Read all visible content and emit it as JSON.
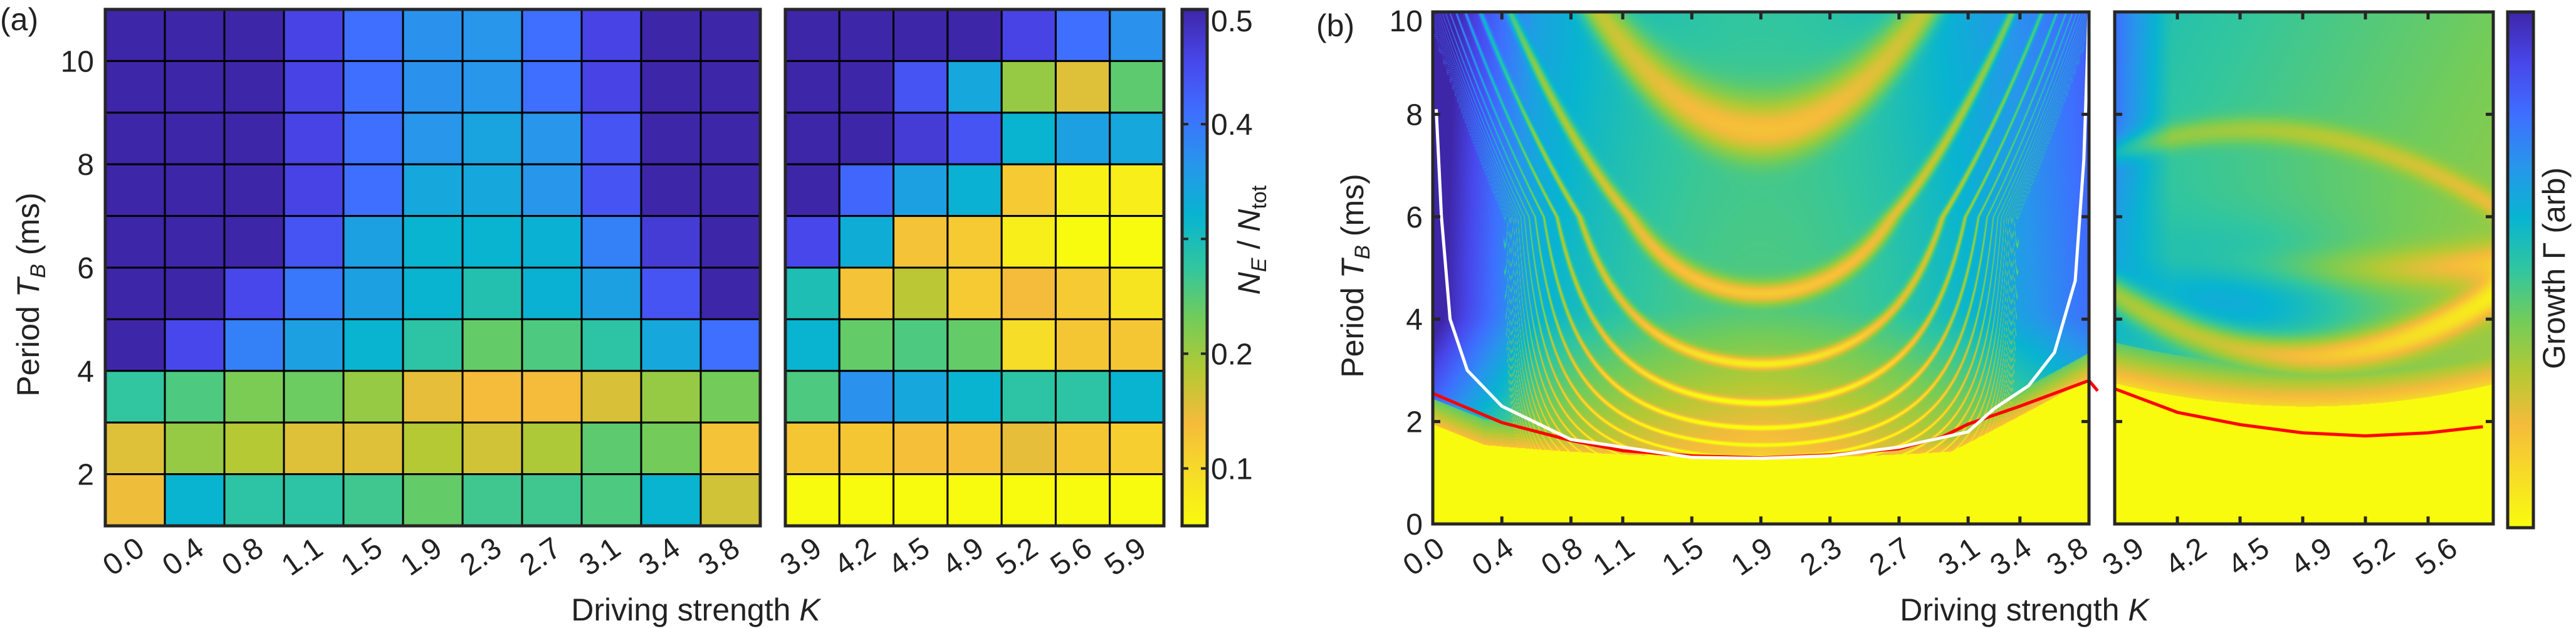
{
  "chart_data": [
    {
      "type": "heatmap",
      "panel_label": "(a)",
      "ylabel": {
        "pre": "Period ",
        "var": "T",
        "sub": "B",
        "post": " (ms)"
      },
      "xlabel": {
        "pre": "Driving strength ",
        "var": "K"
      },
      "y_range": [
        1,
        11
      ],
      "y_ticks": [
        "2",
        "4",
        "6",
        "8",
        "10"
      ],
      "x_categories_left": [
        "0.0",
        "0.4",
        "0.8",
        "1.1",
        "1.5",
        "1.9",
        "2.3",
        "2.7",
        "3.1",
        "3.4",
        "3.8"
      ],
      "x_categories_right": [
        "3.9",
        "4.2",
        "4.5",
        "4.9",
        "5.2",
        "5.6",
        "5.9"
      ],
      "row_order": "top-to-bottom",
      "values_left": [
        [
          0.5,
          0.5,
          0.5,
          0.46,
          0.41,
          0.37,
          0.365,
          0.41,
          0.46,
          0.5,
          0.5
        ],
        [
          0.5,
          0.5,
          0.5,
          0.46,
          0.41,
          0.37,
          0.365,
          0.41,
          0.46,
          0.5,
          0.5
        ],
        [
          0.5,
          0.5,
          0.5,
          0.46,
          0.41,
          0.365,
          0.345,
          0.365,
          0.44,
          0.5,
          0.5
        ],
        [
          0.5,
          0.5,
          0.5,
          0.46,
          0.41,
          0.34,
          0.34,
          0.365,
          0.44,
          0.5,
          0.5
        ],
        [
          0.5,
          0.5,
          0.5,
          0.44,
          0.35,
          0.32,
          0.32,
          0.325,
          0.39,
          0.47,
          0.5
        ],
        [
          0.5,
          0.5,
          0.455,
          0.4,
          0.35,
          0.32,
          0.29,
          0.325,
          0.35,
          0.44,
          0.5
        ],
        [
          0.5,
          0.455,
          0.39,
          0.35,
          0.32,
          0.28,
          0.24,
          0.255,
          0.28,
          0.34,
          0.41
        ],
        [
          0.275,
          0.255,
          0.225,
          0.235,
          0.205,
          0.15,
          0.14,
          0.14,
          0.16,
          0.205,
          0.23
        ],
        [
          0.155,
          0.205,
          0.185,
          0.155,
          0.155,
          0.185,
          0.165,
          0.19,
          0.245,
          0.23,
          0.13
        ],
        [
          0.145,
          0.32,
          0.28,
          0.28,
          0.265,
          0.24,
          0.265,
          0.265,
          0.255,
          0.32,
          0.165
        ]
      ],
      "values_right": [
        [
          0.5,
          0.5,
          0.5,
          0.5,
          0.46,
          0.41,
          0.37
        ],
        [
          0.5,
          0.5,
          0.44,
          0.34,
          0.205,
          0.155,
          0.245
        ],
        [
          0.5,
          0.5,
          0.47,
          0.44,
          0.32,
          0.35,
          0.34
        ],
        [
          0.5,
          0.42,
          0.35,
          0.325,
          0.12,
          0.065,
          0.07
        ],
        [
          0.455,
          0.33,
          0.13,
          0.12,
          0.07,
          0.05,
          0.05
        ],
        [
          0.295,
          0.13,
          0.18,
          0.12,
          0.14,
          0.12,
          0.085
        ],
        [
          0.32,
          0.24,
          0.255,
          0.24,
          0.095,
          0.125,
          0.125
        ],
        [
          0.255,
          0.37,
          0.34,
          0.32,
          0.28,
          0.28,
          0.32
        ],
        [
          0.125,
          0.125,
          0.135,
          0.135,
          0.15,
          0.125,
          0.115
        ],
        [
          0.05,
          0.05,
          0.05,
          0.05,
          0.05,
          0.05,
          0.05
        ]
      ],
      "colorbar": {
        "range": [
          0.05,
          0.5
        ],
        "ticks": [
          0.1,
          0.2,
          0.3,
          0.4,
          0.5
        ],
        "tick_labels": [
          "0.1",
          "0.2",
          "",
          "0.4",
          "0.5"
        ],
        "label": {
          "n1": "N",
          "s1": "E",
          "mid": " / ",
          "n2": "N",
          "s2": "tot"
        },
        "colormap": "parula (reversed: high = dark blue)"
      }
    },
    {
      "type": "heatmap",
      "panel_label": "(b)",
      "ylabel": {
        "pre": "Period ",
        "var": "T",
        "sub": "B",
        "post": " (ms)"
      },
      "xlabel": {
        "pre": "Driving strength ",
        "var": "K"
      },
      "y_range": [
        0,
        10
      ],
      "y_ticks": [
        "0",
        "2",
        "4",
        "6",
        "8",
        "10"
      ],
      "x_ticks_left": [
        "0.0",
        "0.4",
        "0.8",
        "1.1",
        "1.5",
        "1.9",
        "2.3",
        "2.7",
        "3.1",
        "3.4",
        "3.8"
      ],
      "x_ticks_right": [
        "3.9",
        "4.2",
        "4.5",
        "4.9",
        "5.2",
        "5.6"
      ],
      "colorbar": {
        "label": "Growth Γ (arb)",
        "colormap": "parula (reversed: high = dark blue)"
      },
      "curves": [
        {
          "color": "#ff0000",
          "panel": "left",
          "points": [
            [
              0.0,
              2.55
            ],
            [
              0.4,
              1.98
            ],
            [
              0.8,
              1.63
            ],
            [
              1.1,
              1.43
            ],
            [
              1.5,
              1.33
            ],
            [
              1.9,
              1.29
            ],
            [
              2.3,
              1.35
            ],
            [
              2.7,
              1.47
            ],
            [
              2.95,
              1.7
            ],
            [
              3.1,
              1.95
            ],
            [
              3.4,
              2.3
            ],
            [
              3.8,
              2.8
            ],
            [
              3.85,
              2.6
            ]
          ]
        },
        {
          "color": "#ffffff",
          "panel": "left",
          "points": [
            [
              0.02,
              8.1
            ],
            [
              0.05,
              6.0
            ],
            [
              0.1,
              4.0
            ],
            [
              0.2,
              3.0
            ],
            [
              0.4,
              2.3
            ],
            [
              0.8,
              1.65
            ],
            [
              1.5,
              1.3
            ],
            [
              1.9,
              1.28
            ],
            [
              2.3,
              1.33
            ],
            [
              2.7,
              1.5
            ],
            [
              3.1,
              1.8
            ],
            [
              3.25,
              2.25
            ],
            [
              3.45,
              2.7
            ],
            [
              3.6,
              3.35
            ],
            [
              3.72,
              4.75
            ],
            [
              3.77,
              7.1
            ],
            [
              3.8,
              10.0
            ]
          ]
        },
        {
          "color": "#ff0000",
          "panel": "right",
          "points": [
            [
              3.9,
              2.64
            ],
            [
              4.2,
              2.18
            ],
            [
              4.5,
              1.94
            ],
            [
              4.9,
              1.78
            ],
            [
              5.2,
              1.72
            ],
            [
              5.6,
              1.78
            ],
            [
              5.95,
              1.9
            ]
          ]
        }
      ]
    }
  ]
}
